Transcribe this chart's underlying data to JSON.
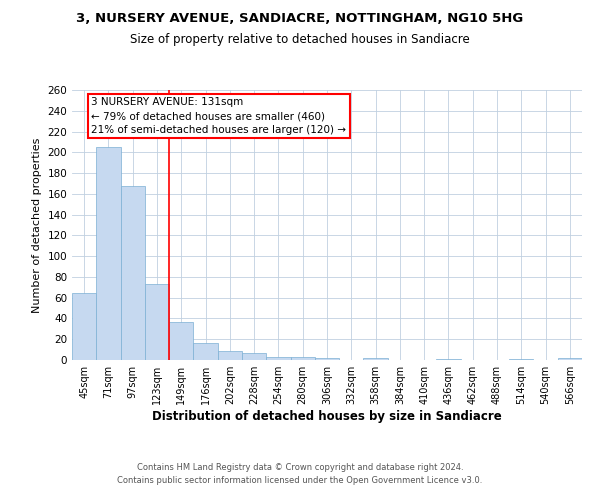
{
  "title1": "3, NURSERY AVENUE, SANDIACRE, NOTTINGHAM, NG10 5HG",
  "title2": "Size of property relative to detached houses in Sandiacre",
  "xlabel": "Distribution of detached houses by size in Sandiacre",
  "ylabel": "Number of detached properties",
  "categories": [
    "45sqm",
    "71sqm",
    "97sqm",
    "123sqm",
    "149sqm",
    "176sqm",
    "202sqm",
    "228sqm",
    "254sqm",
    "280sqm",
    "306sqm",
    "332sqm",
    "358sqm",
    "384sqm",
    "410sqm",
    "436sqm",
    "462sqm",
    "488sqm",
    "514sqm",
    "540sqm",
    "566sqm"
  ],
  "values": [
    65,
    205,
    168,
    73,
    37,
    16,
    9,
    7,
    3,
    3,
    2,
    0,
    2,
    0,
    0,
    1,
    0,
    0,
    1,
    0,
    2
  ],
  "bar_color": "#c6d9f0",
  "bar_edge_color": "#7bafd4",
  "red_line_x": 3.5,
  "annotation_text": "3 NURSERY AVENUE: 131sqm\n← 79% of detached houses are smaller (460)\n21% of semi-detached houses are larger (120) →",
  "ylim": [
    0,
    260
  ],
  "yticks": [
    0,
    20,
    40,
    60,
    80,
    100,
    120,
    140,
    160,
    180,
    200,
    220,
    240,
    260
  ],
  "footnote1": "Contains HM Land Registry data © Crown copyright and database right 2024.",
  "footnote2": "Contains public sector information licensed under the Open Government Licence v3.0.",
  "bg_color": "#ffffff",
  "grid_color": "#c0d0e0",
  "title1_fontsize": 9.5,
  "title2_fontsize": 8.5,
  "xlabel_fontsize": 8.5,
  "ylabel_fontsize": 8,
  "tick_fontsize": 7,
  "annotation_fontsize": 7.5,
  "footnote_fontsize": 6
}
